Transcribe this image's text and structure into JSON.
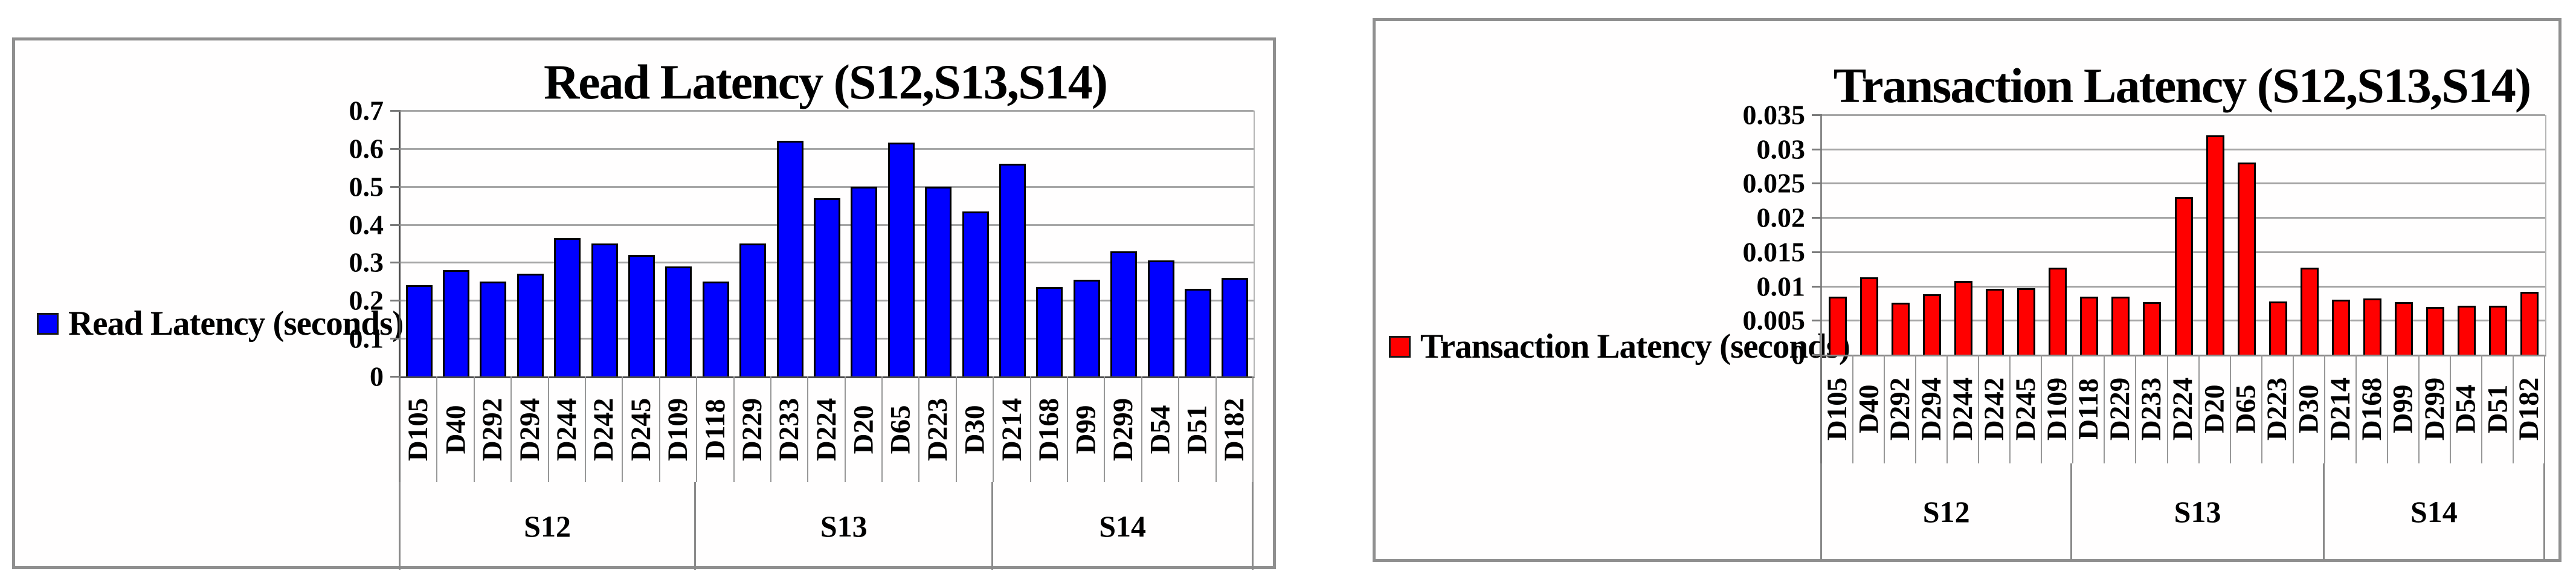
{
  "chart_data": [
    {
      "type": "bar",
      "title": "Read Latency (S12,S13,S14)",
      "legend": "Read Latency (seconds)",
      "bar_color": "#0000ff",
      "ylim": [
        0,
        0.7
      ],
      "ytick_step": 0.1,
      "yticks": [
        "0.7",
        "0.6",
        "0.5",
        "0.4",
        "0.3",
        "0.2",
        "0.1",
        "0"
      ],
      "grid": true,
      "legend_position": "left-middle",
      "categories": [
        "D105",
        "D40",
        "D292",
        "D294",
        "D244",
        "D242",
        "D245",
        "D109",
        "D118",
        "D229",
        "D233",
        "D224",
        "D20",
        "D65",
        "D223",
        "D30",
        "D214",
        "D168",
        "D99",
        "D299",
        "D54",
        "D51",
        "D182"
      ],
      "values": [
        0.24,
        0.28,
        0.25,
        0.27,
        0.365,
        0.35,
        0.32,
        0.29,
        0.25,
        0.35,
        0.62,
        0.47,
        0.5,
        0.615,
        0.5,
        0.435,
        0.56,
        0.235,
        0.255,
        0.33,
        0.305,
        0.23,
        0.26
      ],
      "groups": [
        {
          "label": "S12",
          "span": 8
        },
        {
          "label": "S13",
          "span": 8
        },
        {
          "label": "S14",
          "span": 7
        }
      ]
    },
    {
      "type": "bar",
      "title": "Transaction Latency (S12,S13,S14)",
      "legend": "Transaction Latency (seconds)",
      "bar_color": "#ff0000",
      "ylim": [
        0,
        0.035
      ],
      "ytick_step": 0.005,
      "yticks": [
        "0.035",
        "0.03",
        "0.025",
        "0.02",
        "0.015",
        "0.01",
        "0.005",
        "0"
      ],
      "grid": true,
      "legend_position": "left-middle",
      "categories": [
        "D105",
        "D40",
        "D292",
        "D294",
        "D244",
        "D242",
        "D245",
        "D109",
        "D118",
        "D229",
        "D233",
        "D224",
        "D20",
        "D65",
        "D223",
        "D30",
        "D214",
        "D168",
        "D99",
        "D299",
        "D54",
        "D51",
        "D182"
      ],
      "values": [
        0.0085,
        0.0113,
        0.0076,
        0.0088,
        0.0108,
        0.0096,
        0.0097,
        0.0127,
        0.0085,
        0.0085,
        0.0077,
        0.023,
        0.032,
        0.028,
        0.0078,
        0.0127,
        0.008,
        0.0082,
        0.0077,
        0.007,
        0.0071,
        0.0071,
        0.0092
      ],
      "groups": [
        {
          "label": "S12",
          "span": 8
        },
        {
          "label": "S13",
          "span": 8
        },
        {
          "label": "S14",
          "span": 7
        }
      ]
    }
  ]
}
